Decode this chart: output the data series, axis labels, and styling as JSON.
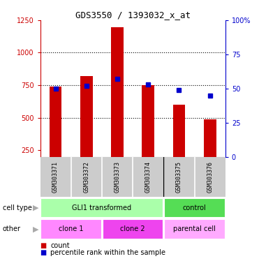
{
  "title": "GDS3550 / 1393032_x_at",
  "samples": [
    "GSM303371",
    "GSM303372",
    "GSM303373",
    "GSM303374",
    "GSM303375",
    "GSM303376"
  ],
  "counts": [
    740,
    820,
    1195,
    750,
    600,
    490
  ],
  "percentile_ranks": [
    50,
    52,
    57,
    53,
    49,
    45
  ],
  "ylim_left": [
    200,
    1250
  ],
  "ylim_right": [
    0,
    100
  ],
  "yticks_left": [
    250,
    500,
    750,
    1000,
    1250
  ],
  "yticks_right": [
    0,
    25,
    50,
    75,
    100
  ],
  "ytick_right_labels": [
    "0",
    "25",
    "50",
    "75",
    "100%"
  ],
  "grid_lines": [
    500,
    750,
    1000
  ],
  "cell_type_groups": [
    {
      "label": "GLI1 transformed",
      "span": [
        0,
        4
      ],
      "color": "#aaffaa"
    },
    {
      "label": "control",
      "span": [
        4,
        6
      ],
      "color": "#55dd55"
    }
  ],
  "other_groups": [
    {
      "label": "clone 1",
      "span": [
        0,
        2
      ],
      "color": "#ff88ff"
    },
    {
      "label": "clone 2",
      "span": [
        2,
        4
      ],
      "color": "#ee44ee"
    },
    {
      "label": "parental cell",
      "span": [
        4,
        6
      ],
      "color": "#ffaaff"
    }
  ],
  "bar_color": "#cc0000",
  "dot_color": "#0000cc",
  "bg_color": "#ffffff",
  "tick_area_color": "#cccccc",
  "left_axis_color": "#cc0000",
  "right_axis_color": "#0000cc",
  "legend_count_color": "#cc0000",
  "legend_pct_color": "#0000cc",
  "bar_width": 0.4,
  "dot_size": 5
}
